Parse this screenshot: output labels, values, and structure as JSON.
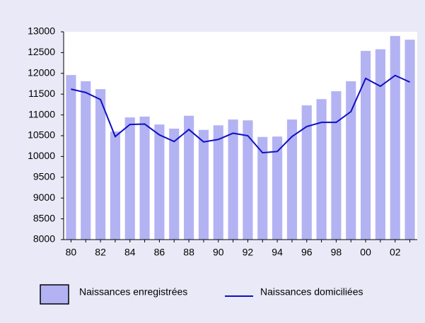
{
  "chart_data": {
    "type": "bar-line",
    "categories": [
      "80",
      null,
      "82",
      null,
      "84",
      null,
      "86",
      null,
      "88",
      null,
      "90",
      null,
      "92",
      null,
      "94",
      null,
      "96",
      null,
      "98",
      null,
      "00",
      null,
      "02",
      null
    ],
    "series": [
      {
        "name": "Naissances enregistrées",
        "type": "bar",
        "color": "#b3b3f3",
        "values": [
          11960,
          11810,
          11620,
          10600,
          10940,
          10960,
          10770,
          10670,
          10980,
          10640,
          10750,
          10890,
          10870,
          10470,
          10480,
          10890,
          11230,
          11380,
          11570,
          11810,
          12540,
          12580,
          12900,
          12810
        ]
      },
      {
        "name": "Naissances domiciliées",
        "type": "line",
        "color": "#1010c0",
        "values": [
          11620,
          11540,
          11370,
          10480,
          10770,
          10780,
          10520,
          10360,
          10650,
          10350,
          10410,
          10560,
          10500,
          10090,
          10120,
          10480,
          10720,
          10820,
          10820,
          11080,
          11880,
          11690,
          11950,
          11790
        ]
      }
    ],
    "ylim": [
      8000,
      13000
    ],
    "yticks": [
      8000,
      8500,
      9000,
      9500,
      10000,
      10500,
      11000,
      11500,
      12000,
      12500,
      13000
    ],
    "grid": false,
    "legend": "bottom"
  }
}
